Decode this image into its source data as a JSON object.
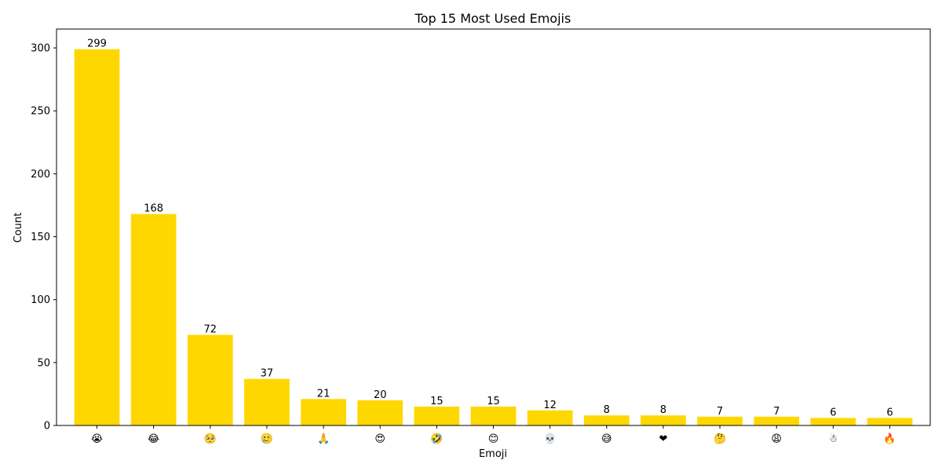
{
  "chart_data": {
    "type": "bar",
    "title": "Top 15 Most Used Emojis",
    "xlabel": "Emoji",
    "ylabel": "Count",
    "categories": [
      "😭",
      "😂",
      "🥺",
      "🥲",
      "🙏",
      "😍",
      "🤣",
      "😊",
      "💀",
      "😅",
      "❤",
      "🤔",
      "😩",
      "☃",
      "🔥"
    ],
    "values": [
      299,
      168,
      72,
      37,
      21,
      20,
      15,
      15,
      12,
      8,
      8,
      7,
      7,
      6,
      6
    ],
    "ylim": [
      0,
      315
    ],
    "yticks": [
      0,
      50,
      100,
      150,
      200,
      250,
      300
    ],
    "bar_color": "#ffd700",
    "grid": false,
    "show_value_labels": true
  }
}
